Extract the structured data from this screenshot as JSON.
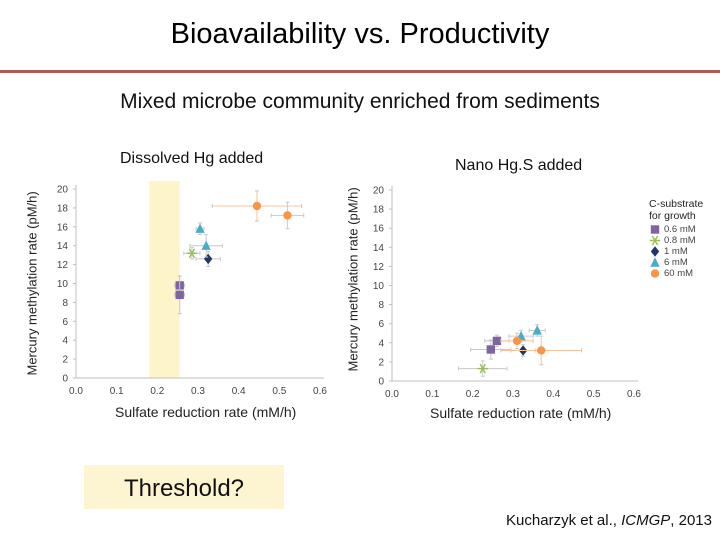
{
  "slide": {
    "title": "Bioavailability vs. Productivity",
    "subtitle": "Mixed microbe community enriched from sediments",
    "threshold_label": "Threshold?",
    "citation_author": "Kucharzyk et al., ",
    "citation_venue": "ICMGP",
    "citation_year": ", 2013"
  },
  "legend": {
    "title_line1": "C-substrate",
    "title_line2": "for growth",
    "items": [
      {
        "label": "0.6 mM",
        "color": "#8064a2",
        "shape": "square"
      },
      {
        "label": "0.8 mM",
        "color": "#9bbb59",
        "shape": "star"
      },
      {
        "label": "1 mM",
        "color": "#1f3864",
        "shape": "diamond"
      },
      {
        "label": "6 mM",
        "color": "#4bacc6",
        "shape": "triangle"
      },
      {
        "label": "60 mM",
        "color": "#f79646",
        "shape": "circle"
      }
    ]
  },
  "chart_data": [
    {
      "type": "scatter",
      "panel_label": "Dissolved Hg added",
      "xlabel": "Sulfate reduction rate (mM/h)",
      "ylabel": "Mercury methylation rate (pM/h)",
      "xlim": [
        0,
        0.6
      ],
      "ylim": [
        0,
        20
      ],
      "xticks": [
        "0.0",
        "0.1",
        "0.2",
        "0.3",
        "0.4",
        "0.5",
        "0.6"
      ],
      "yticks": [
        "0",
        "2",
        "4",
        "6",
        "8",
        "10",
        "12",
        "14",
        "16",
        "18",
        "20"
      ],
      "threshold_band_x": [
        0.18,
        0.255
      ],
      "series": [
        {
          "name": "0.6 mM",
          "points": [
            {
              "x": 0.255,
              "y": 9.8,
              "xerr": 0.012,
              "yerr": 1.0
            },
            {
              "x": 0.255,
              "y": 8.8,
              "xerr": 0.012,
              "yerr": 2.0
            }
          ]
        },
        {
          "name": "0.8 mM",
          "points": [
            {
              "x": 0.285,
              "y": 13.2,
              "xerr": 0.02,
              "yerr": 0.6
            }
          ]
        },
        {
          "name": "1 mM",
          "points": [
            {
              "x": 0.325,
              "y": 12.6,
              "xerr": 0.03,
              "yerr": 0.8
            }
          ]
        },
        {
          "name": "6 mM",
          "points": [
            {
              "x": 0.305,
              "y": 15.8,
              "xerr": 0.01,
              "yerr": 0.6
            },
            {
              "x": 0.32,
              "y": 14.0,
              "xerr": 0.04,
              "yerr": 1.2
            }
          ]
        },
        {
          "name": "60 mM",
          "points": [
            {
              "x": 0.445,
              "y": 18.2,
              "xerr": 0.11,
              "yerr": 1.6
            },
            {
              "x": 0.52,
              "y": 17.2,
              "xerr": 0.04,
              "yerr": 1.4
            }
          ]
        }
      ]
    },
    {
      "type": "scatter",
      "panel_label": "Nano Hg.S added",
      "xlabel": "Sulfate reduction rate (mM/h)",
      "ylabel": "Mercury methylation rate (pM/h)",
      "xlim": [
        0,
        0.6
      ],
      "ylim": [
        0,
        20
      ],
      "xticks": [
        "0.0",
        "0.1",
        "0.2",
        "0.3",
        "0.4",
        "0.5",
        "0.6"
      ],
      "yticks": [
        "0",
        "2",
        "4",
        "6",
        "8",
        "10",
        "12",
        "14",
        "16",
        "18",
        "20"
      ],
      "series": [
        {
          "name": "0.6 mM",
          "points": [
            {
              "x": 0.26,
              "y": 4.2,
              "xerr": 0.03,
              "yerr": 0.6
            },
            {
              "x": 0.245,
              "y": 3.3,
              "xerr": 0.05,
              "yerr": 1.0
            }
          ]
        },
        {
          "name": "0.8 mM",
          "points": [
            {
              "x": 0.225,
              "y": 1.3,
              "xerr": 0.06,
              "yerr": 0.8
            }
          ]
        },
        {
          "name": "1 mM",
          "points": [
            {
              "x": 0.325,
              "y": 3.2,
              "xerr": 0.03,
              "yerr": 0.6
            }
          ]
        },
        {
          "name": "6 mM",
          "points": [
            {
              "x": 0.32,
              "y": 4.7,
              "xerr": 0.03,
              "yerr": 0.6
            },
            {
              "x": 0.36,
              "y": 5.3,
              "xerr": 0.02,
              "yerr": 0.6
            }
          ]
        },
        {
          "name": "60 mM",
          "points": [
            {
              "x": 0.31,
              "y": 4.2,
              "xerr": 0.04,
              "yerr": 0.8
            },
            {
              "x": 0.37,
              "y": 3.2,
              "xerr": 0.1,
              "yerr": 1.5
            }
          ]
        }
      ]
    }
  ]
}
